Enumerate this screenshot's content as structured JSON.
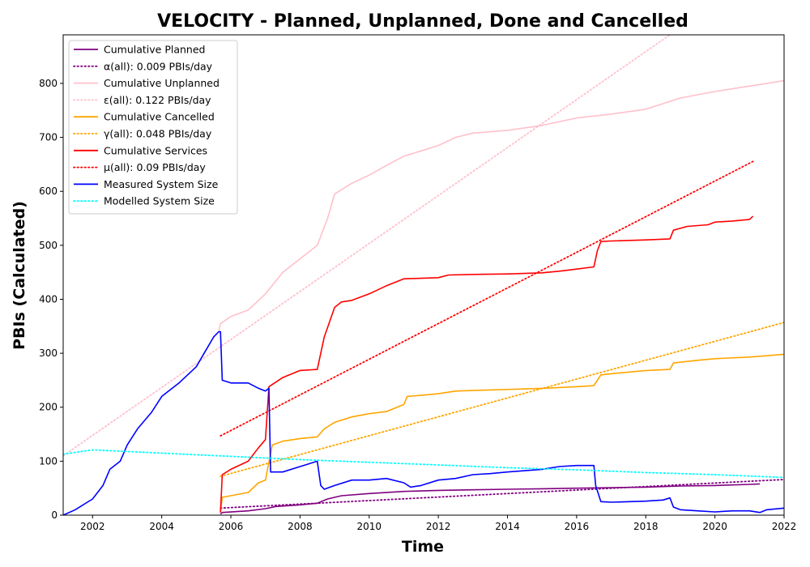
{
  "chart_data": {
    "type": "line",
    "title": "VELOCITY - Planned, Unplanned, Done  and Cancelled",
    "xlabel": "Time",
    "ylabel": "PBIs (Calculated)",
    "xlim": [
      2001.15,
      2022.0
    ],
    "ylim": [
      0,
      890
    ],
    "xticks": [
      2002,
      2004,
      2006,
      2008,
      2010,
      2012,
      2014,
      2016,
      2018,
      2020,
      2022
    ],
    "yticks": [
      0,
      100,
      200,
      300,
      400,
      500,
      600,
      700,
      800
    ],
    "grid": false,
    "legend_position": "top-left",
    "series": [
      {
        "name": "Cumulative Planned",
        "color": "#800080",
        "style": "solid",
        "points": [
          [
            2005.7,
            2
          ],
          [
            2005.75,
            5
          ],
          [
            2006.5,
            8
          ],
          [
            2007.0,
            12
          ],
          [
            2007.3,
            16
          ],
          [
            2008.0,
            19
          ],
          [
            2008.5,
            22
          ],
          [
            2008.8,
            30
          ],
          [
            2009.2,
            36
          ],
          [
            2010.0,
            40
          ],
          [
            2011.0,
            44
          ],
          [
            2012.0,
            46
          ],
          [
            2013.0,
            47
          ],
          [
            2014.0,
            48
          ],
          [
            2015.0,
            49
          ],
          [
            2016.0,
            50
          ],
          [
            2017.0,
            51
          ],
          [
            2018.0,
            52
          ],
          [
            2019.0,
            54
          ],
          [
            2020.0,
            55
          ],
          [
            2021.0,
            57
          ],
          [
            2021.3,
            58
          ]
        ]
      },
      {
        "name": "α(all): 0.009 PBIs/day",
        "color": "#800080",
        "style": "dotted",
        "points": [
          [
            2005.7,
            13
          ],
          [
            2022.0,
            66
          ]
        ]
      },
      {
        "name": "Cumulative Unplanned",
        "color": "#ffc0cb",
        "style": "solid",
        "points": [
          [
            2005.65,
            340
          ],
          [
            2005.7,
            355
          ],
          [
            2006.0,
            368
          ],
          [
            2006.5,
            380
          ],
          [
            2007.0,
            410
          ],
          [
            2007.5,
            450
          ],
          [
            2008.0,
            475
          ],
          [
            2008.5,
            500
          ],
          [
            2008.8,
            550
          ],
          [
            2009.0,
            595
          ],
          [
            2009.5,
            615
          ],
          [
            2010.0,
            630
          ],
          [
            2010.5,
            648
          ],
          [
            2011.0,
            665
          ],
          [
            2011.5,
            675
          ],
          [
            2012.0,
            685
          ],
          [
            2012.5,
            700
          ],
          [
            2013.0,
            708
          ],
          [
            2014.0,
            713
          ],
          [
            2015.0,
            722
          ],
          [
            2016.0,
            736
          ],
          [
            2017.0,
            743
          ],
          [
            2018.0,
            752
          ],
          [
            2019.0,
            773
          ],
          [
            2020.0,
            785
          ],
          [
            2021.0,
            795
          ],
          [
            2022.0,
            805
          ]
        ]
      },
      {
        "name": "ε(all): 0.122 PBIs/day",
        "color": "#ffc0cb",
        "style": "dotted",
        "points": [
          [
            2001.15,
            110
          ],
          [
            2018.7,
            890
          ]
        ]
      },
      {
        "name": "Cumulative Cancelled",
        "color": "#ffa500",
        "style": "solid",
        "points": [
          [
            2005.7,
            5
          ],
          [
            2005.75,
            33
          ],
          [
            2006.0,
            36
          ],
          [
            2006.5,
            42
          ],
          [
            2006.8,
            60
          ],
          [
            2007.0,
            65
          ],
          [
            2007.2,
            130
          ],
          [
            2007.5,
            137
          ],
          [
            2008.0,
            142
          ],
          [
            2008.5,
            145
          ],
          [
            2008.7,
            160
          ],
          [
            2009.0,
            172
          ],
          [
            2009.5,
            182
          ],
          [
            2010.0,
            188
          ],
          [
            2010.5,
            192
          ],
          [
            2011.0,
            205
          ],
          [
            2011.1,
            220
          ],
          [
            2011.5,
            222
          ],
          [
            2012.0,
            225
          ],
          [
            2012.5,
            230
          ],
          [
            2013.0,
            231
          ],
          [
            2014.0,
            233
          ],
          [
            2015.0,
            235
          ],
          [
            2016.0,
            238
          ],
          [
            2016.5,
            240
          ],
          [
            2016.7,
            260
          ],
          [
            2017.0,
            262
          ],
          [
            2018.0,
            268
          ],
          [
            2018.7,
            270
          ],
          [
            2018.8,
            282
          ],
          [
            2019.5,
            287
          ],
          [
            2020.0,
            290
          ],
          [
            2021.0,
            293
          ],
          [
            2022.0,
            298
          ]
        ]
      },
      {
        "name": "γ(all): 0.048 PBIs/day",
        "color": "#ffa500",
        "style": "dotted",
        "points": [
          [
            2005.7,
            72
          ],
          [
            2022.0,
            357
          ]
        ]
      },
      {
        "name": "Cumulative Services",
        "color": "#ff0000",
        "style": "solid",
        "points": [
          [
            2005.7,
            5
          ],
          [
            2005.75,
            75
          ],
          [
            2006.0,
            85
          ],
          [
            2006.5,
            100
          ],
          [
            2006.8,
            125
          ],
          [
            2007.0,
            140
          ],
          [
            2007.1,
            238
          ],
          [
            2007.5,
            255
          ],
          [
            2008.0,
            268
          ],
          [
            2008.5,
            270
          ],
          [
            2008.7,
            330
          ],
          [
            2009.0,
            385
          ],
          [
            2009.2,
            395
          ],
          [
            2009.5,
            398
          ],
          [
            2010.0,
            410
          ],
          [
            2010.5,
            425
          ],
          [
            2011.0,
            438
          ],
          [
            2012.0,
            440
          ],
          [
            2012.3,
            445
          ],
          [
            2013.0,
            446
          ],
          [
            2014.0,
            447
          ],
          [
            2015.0,
            449
          ],
          [
            2015.5,
            452
          ],
          [
            2016.0,
            456
          ],
          [
            2016.5,
            460
          ],
          [
            2016.6,
            490
          ],
          [
            2016.7,
            507
          ],
          [
            2017.0,
            508
          ],
          [
            2018.0,
            510
          ],
          [
            2018.7,
            512
          ],
          [
            2018.8,
            528
          ],
          [
            2019.2,
            535
          ],
          [
            2019.8,
            538
          ],
          [
            2020.0,
            543
          ],
          [
            2020.5,
            545
          ],
          [
            2021.0,
            548
          ],
          [
            2021.1,
            554
          ]
        ]
      },
      {
        "name": "μ(all): 0.09 PBIs/day",
        "color": "#ff0000",
        "style": "dotted",
        "points": [
          [
            2005.7,
            147
          ],
          [
            2021.15,
            657
          ]
        ]
      },
      {
        "name": "Measured System Size",
        "color": "#0000ff",
        "style": "solid",
        "points": [
          [
            2001.15,
            0
          ],
          [
            2001.5,
            10
          ],
          [
            2002.0,
            30
          ],
          [
            2002.3,
            55
          ],
          [
            2002.5,
            85
          ],
          [
            2002.8,
            100
          ],
          [
            2003.0,
            130
          ],
          [
            2003.3,
            160
          ],
          [
            2003.7,
            190
          ],
          [
            2004.0,
            220
          ],
          [
            2004.5,
            245
          ],
          [
            2005.0,
            275
          ],
          [
            2005.5,
            330
          ],
          [
            2005.65,
            340
          ],
          [
            2005.7,
            340
          ],
          [
            2005.75,
            250
          ],
          [
            2006.0,
            245
          ],
          [
            2006.5,
            245
          ],
          [
            2006.8,
            235
          ],
          [
            2007.0,
            230
          ],
          [
            2007.1,
            235
          ],
          [
            2007.15,
            80
          ],
          [
            2007.5,
            80
          ],
          [
            2008.0,
            90
          ],
          [
            2008.5,
            100
          ],
          [
            2008.6,
            55
          ],
          [
            2008.7,
            48
          ],
          [
            2009.0,
            55
          ],
          [
            2009.5,
            65
          ],
          [
            2010.0,
            65
          ],
          [
            2010.5,
            68
          ],
          [
            2011.0,
            60
          ],
          [
            2011.2,
            52
          ],
          [
            2011.5,
            55
          ],
          [
            2012.0,
            65
          ],
          [
            2012.5,
            68
          ],
          [
            2013.0,
            75
          ],
          [
            2013.5,
            77
          ],
          [
            2014.0,
            80
          ],
          [
            2015.0,
            85
          ],
          [
            2015.5,
            90
          ],
          [
            2016.0,
            92
          ],
          [
            2016.5,
            92
          ],
          [
            2016.55,
            55
          ],
          [
            2016.7,
            25
          ],
          [
            2017.0,
            24
          ],
          [
            2018.0,
            26
          ],
          [
            2018.5,
            28
          ],
          [
            2018.7,
            32
          ],
          [
            2018.8,
            15
          ],
          [
            2019.0,
            10
          ],
          [
            2019.5,
            8
          ],
          [
            2020.0,
            6
          ],
          [
            2020.5,
            8
          ],
          [
            2021.0,
            8
          ],
          [
            2021.3,
            5
          ],
          [
            2021.5,
            10
          ],
          [
            2022.0,
            13
          ]
        ]
      },
      {
        "name": "Modelled System Size",
        "color": "#00ffff",
        "style": "dotted",
        "points": [
          [
            2001.15,
            113
          ],
          [
            2002.0,
            121
          ],
          [
            2004.0,
            115
          ],
          [
            2006.0,
            109
          ],
          [
            2008.0,
            103
          ],
          [
            2010.0,
            98
          ],
          [
            2012.0,
            93
          ],
          [
            2014.0,
            88
          ],
          [
            2016.0,
            84
          ],
          [
            2018.0,
            79
          ],
          [
            2020.0,
            75
          ],
          [
            2022.0,
            70
          ]
        ]
      }
    ]
  }
}
